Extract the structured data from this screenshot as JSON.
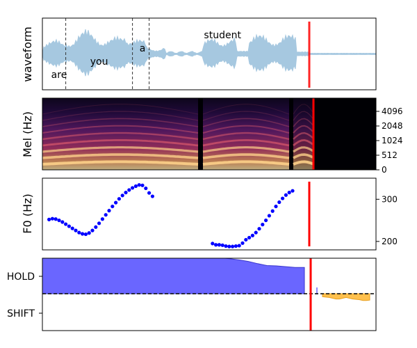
{
  "colors": {
    "waveform_fill": "#a6c8e0",
    "boundary_line": "#333333",
    "cursor": "#ff0000",
    "f0_points": "#0000ff",
    "hold_fill": "#6a66ff",
    "hold_edge": "#3a36cc",
    "shift_fill": "#ffc04d",
    "shift_edge": "#e8a020"
  },
  "chart_data": [
    {
      "type": "area",
      "panel": "waveform",
      "ylabel": "waveform",
      "words": [
        {
          "text": "are",
          "x": 0.05
        },
        {
          "text": "you",
          "x": 0.17
        },
        {
          "text": "a",
          "x": 0.3
        },
        {
          "text": "student",
          "x": 0.54
        }
      ],
      "word_boundaries": [
        0.07,
        0.27,
        0.32
      ],
      "cursor": 0.8
    },
    {
      "type": "heatmap",
      "panel": "mel",
      "ylabel": "Mel (Hz)",
      "yticks": [
        "0",
        "512",
        "1024",
        "2048",
        "4096"
      ],
      "cursor": 0.8
    },
    {
      "type": "scatter",
      "panel": "f0",
      "ylabel": "F0 (Hz)",
      "yticks": [
        200,
        300
      ],
      "ylim": [
        180,
        350
      ],
      "series": [
        {
          "x": [
            0.02,
            0.03,
            0.04,
            0.05,
            0.06,
            0.07,
            0.08,
            0.09,
            0.1,
            0.11,
            0.12,
            0.13,
            0.14,
            0.15,
            0.16,
            0.17,
            0.18,
            0.19,
            0.2,
            0.21,
            0.22,
            0.23,
            0.24,
            0.25,
            0.26,
            0.27,
            0.28,
            0.29,
            0.3,
            0.31,
            0.32,
            0.33
          ],
          "y": [
            252,
            254,
            253,
            250,
            246,
            241,
            236,
            231,
            226,
            221,
            218,
            217,
            220,
            226,
            234,
            243,
            253,
            263,
            273,
            283,
            292,
            301,
            309,
            316,
            322,
            327,
            331,
            334,
            333,
            326,
            315,
            307
          ]
        },
        {
          "x": [
            0.51,
            0.52,
            0.53,
            0.54,
            0.55,
            0.56,
            0.57,
            0.58,
            0.59,
            0.6,
            0.61,
            0.62,
            0.63,
            0.64,
            0.65,
            0.66,
            0.67,
            0.68,
            0.69,
            0.7,
            0.71,
            0.72,
            0.73,
            0.74,
            0.75
          ],
          "y": [
            195,
            192,
            192,
            191,
            189,
            188,
            188,
            189,
            190,
            196,
            204,
            209,
            214,
            221,
            230,
            240,
            250,
            261,
            272,
            283,
            293,
            302,
            310,
            316,
            320
          ]
        }
      ],
      "cursor": 0.8
    },
    {
      "type": "area",
      "panel": "turn",
      "ytick_labels": [
        "HOLD",
        "SHIFT"
      ],
      "hold_top": [
        0.97,
        0.98,
        0.96,
        0.99,
        0.97,
        0.95,
        0.98,
        0.96,
        0.97,
        0.98,
        0.97,
        0.96,
        0.98,
        0.97,
        0.96,
        0.97,
        0.95,
        0.96,
        0.97,
        0.96,
        0.93,
        0.9,
        0.86,
        0.8,
        0.75,
        0.74,
        0.72,
        0.7,
        0.7
      ],
      "shift_bottom": [
        -0.08,
        -0.09,
        -0.1,
        -0.12,
        -0.14,
        -0.14,
        -0.12,
        -0.1,
        -0.12,
        -0.14,
        -0.15,
        -0.16,
        -0.18,
        -0.18,
        -0.17
      ],
      "cursor": 0.79
    }
  ]
}
